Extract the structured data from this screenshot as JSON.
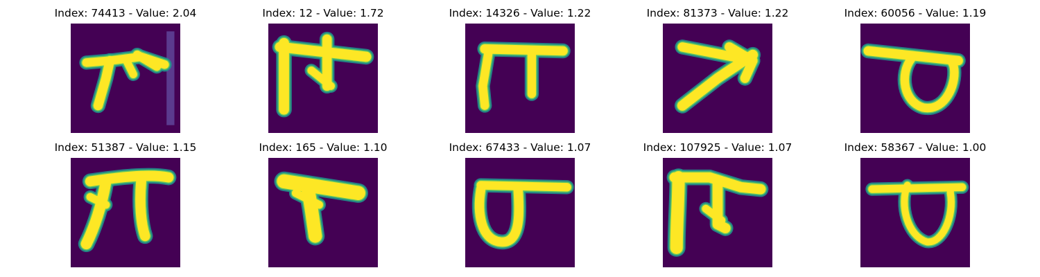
{
  "colors": {
    "background": "#440154",
    "foreground": "#fde725",
    "mid": "#21918c",
    "edge": "#5ec962"
  },
  "panels": [
    {
      "title": "Index: 74413 - Value: 2.04",
      "glyph": "pa_bar"
    },
    {
      "title": "Index: 12 - Value: 1.72",
      "glyph": "pa"
    },
    {
      "title": "Index: 14326 - Value: 1.22",
      "glyph": "pa_open"
    },
    {
      "title": "Index: 81373 - Value: 1.22",
      "glyph": "arrow"
    },
    {
      "title": "Index: 60056 - Value: 1.19",
      "glyph": "loop"
    },
    {
      "title": "Index: 51387 - Value: 1.15",
      "glyph": "pi"
    },
    {
      "title": "Index: 165 - Value: 1.10",
      "glyph": "tee"
    },
    {
      "title": "Index: 67433 - Value: 1.07",
      "glyph": "loop_big"
    },
    {
      "title": "Index: 107925 - Value: 1.07",
      "glyph": "pa_bold"
    },
    {
      "title": "Index: 58367 - Value: 1.00",
      "glyph": "loop_thin"
    }
  ]
}
